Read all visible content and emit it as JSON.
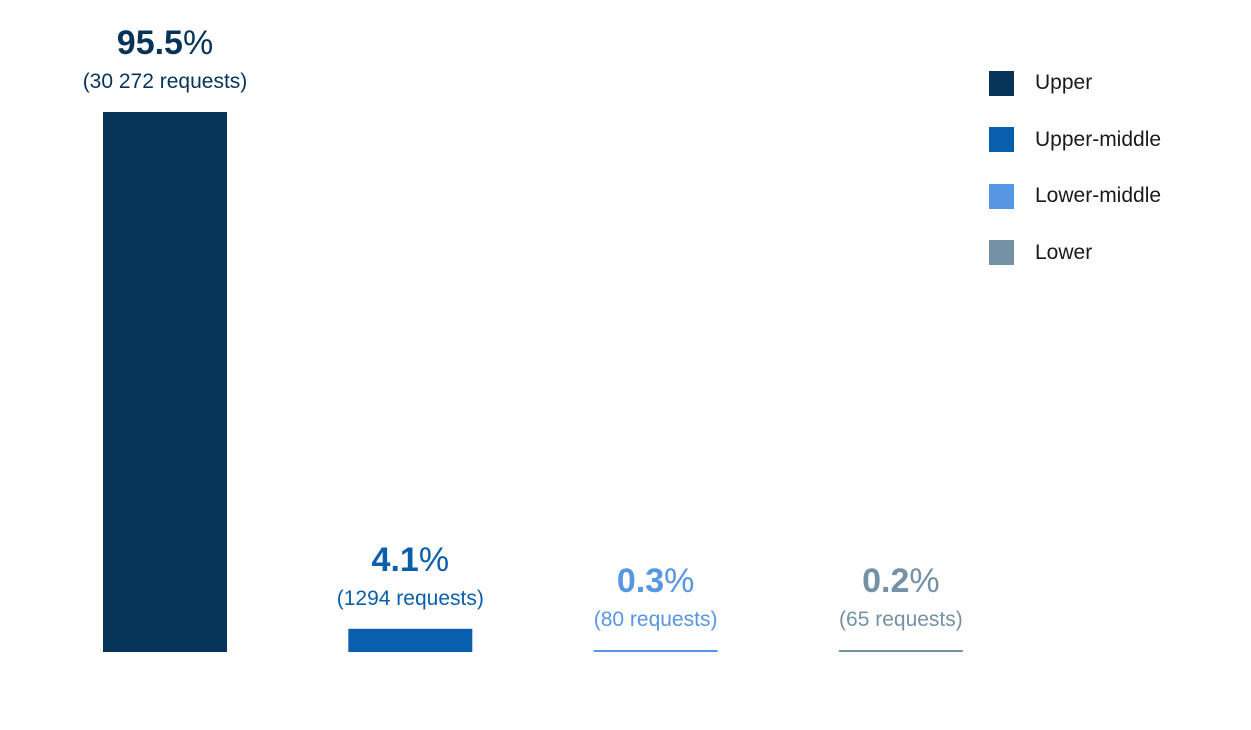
{
  "chart_data": {
    "type": "bar",
    "categories": [
      "Upper",
      "Upper-middle",
      "Lower-middle",
      "Lower"
    ],
    "values": [
      95.5,
      4.1,
      0.3,
      0.2
    ],
    "value_labels": [
      "95.5%",
      "4.1%",
      "0.3%",
      "0.2%"
    ],
    "count_labels": [
      "(30 272 requests)",
      "(1294 requests)",
      "(80 requests)",
      "(65 requests)"
    ],
    "colors": [
      "#063459",
      "#0a5fad",
      "#5696e2",
      "#7591a5"
    ],
    "ylim": [
      0,
      100
    ],
    "grid": false,
    "legend_position": "top-right",
    "title": "",
    "xlabel": "",
    "ylabel": ""
  },
  "legend": {
    "items": [
      {
        "label": "Upper",
        "color": "#063459"
      },
      {
        "label": "Upper-middle",
        "color": "#0a5fad"
      },
      {
        "label": "Lower-middle",
        "color": "#5696e2"
      },
      {
        "label": "Lower",
        "color": "#7591a5"
      }
    ]
  }
}
